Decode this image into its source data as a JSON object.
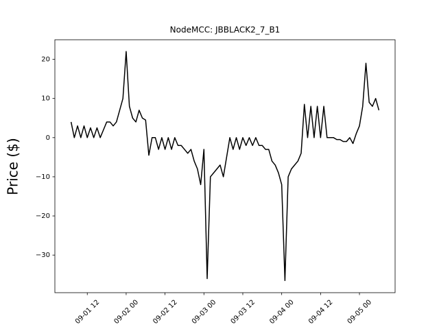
{
  "chart_data": {
    "type": "line",
    "title": "NodeMCC: JBBLACK2_7_B1",
    "ylabel": "Price ($)",
    "x": [
      "09-01 07",
      "09-01 08",
      "09-01 09",
      "09-01 10",
      "09-01 11",
      "09-01 12",
      "09-01 13",
      "09-01 14",
      "09-01 15",
      "09-01 16",
      "09-01 17",
      "09-01 18",
      "09-01 19",
      "09-01 20",
      "09-01 21",
      "09-01 22",
      "09-01 23",
      "09-02 00",
      "09-02 01",
      "09-02 02",
      "09-02 03",
      "09-02 04",
      "09-02 05",
      "09-02 06",
      "09-02 07",
      "09-02 08",
      "09-02 09",
      "09-02 10",
      "09-02 11",
      "09-02 12",
      "09-02 13",
      "09-02 14",
      "09-02 15",
      "09-02 16",
      "09-02 17",
      "09-02 18",
      "09-02 19",
      "09-02 20",
      "09-02 21",
      "09-02 22",
      "09-02 23",
      "09-03 00",
      "09-03 01",
      "09-03 02",
      "09-03 03",
      "09-03 04",
      "09-03 05",
      "09-03 06",
      "09-03 07",
      "09-03 08",
      "09-03 09",
      "09-03 10",
      "09-03 11",
      "09-03 12",
      "09-03 13",
      "09-03 14",
      "09-03 15",
      "09-03 16",
      "09-03 17",
      "09-03 18",
      "09-03 19",
      "09-03 20",
      "09-03 21",
      "09-03 22",
      "09-03 23",
      "09-04 00",
      "09-04 01",
      "09-04 02",
      "09-04 03",
      "09-04 04",
      "09-04 05",
      "09-04 06",
      "09-04 07",
      "09-04 08",
      "09-04 09",
      "09-04 10",
      "09-04 11",
      "09-04 12",
      "09-04 13",
      "09-04 14",
      "09-04 15",
      "09-04 16",
      "09-04 17",
      "09-04 18",
      "09-04 19",
      "09-04 20",
      "09-04 21",
      "09-04 22",
      "09-04 23",
      "09-05 00",
      "09-05 01",
      "09-05 02",
      "09-05 03",
      "09-05 04",
      "09-05 05",
      "09-05 06"
    ],
    "series": [
      {
        "color": "#000000",
        "values": [
          4,
          0,
          3,
          0,
          3,
          0,
          2.5,
          0,
          2.5,
          0,
          2,
          4,
          4,
          3,
          4,
          7,
          10,
          22,
          8,
          5,
          4,
          7,
          5,
          4.5,
          -4.5,
          0,
          0,
          -3,
          0,
          -3,
          0,
          -3,
          0,
          -2,
          -2,
          -3,
          -4,
          -3,
          -6,
          -8,
          -12,
          -3,
          -36,
          -10,
          -9,
          -8,
          -7,
          -10,
          -5,
          0,
          -3,
          0,
          -3,
          0,
          -2,
          0,
          -2,
          0,
          -2,
          -2,
          -3,
          -3,
          -6,
          -7,
          -9,
          -12,
          -36.5,
          -10,
          -8,
          -7,
          -6,
          -4,
          8.5,
          0,
          8,
          0,
          8,
          0,
          8,
          0,
          0,
          0,
          -0.5,
          -0.5,
          -1,
          -1,
          0,
          -1.5,
          1,
          3,
          8,
          19,
          9,
          8,
          10,
          7
        ]
      }
    ],
    "xlim": [
      "09-01 02",
      "09-05 11"
    ],
    "xticks": [
      "09-01 12",
      "09-02 00",
      "09-02 12",
      "09-03 00",
      "09-03 12",
      "09-04 00",
      "09-04 12",
      "09-05 00"
    ],
    "ylim": [
      -39.6,
      25
    ],
    "yticks": [
      {
        "value": -30,
        "label": "−30"
      },
      {
        "value": -20,
        "label": "−20"
      },
      {
        "value": -10,
        "label": "−10"
      },
      0,
      10,
      20
    ]
  }
}
